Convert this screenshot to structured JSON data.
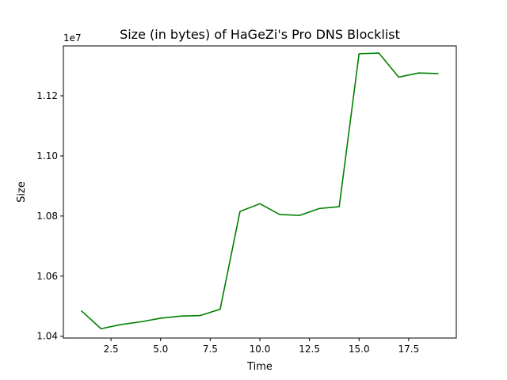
{
  "chart_data": {
    "type": "line",
    "title": "Size (in bytes) of HaGeZi's Pro DNS Blocklist",
    "xlabel": "Time",
    "ylabel": "Size",
    "y_offset_label": "1e7",
    "xlim": [
      0.1,
      19.9
    ],
    "ylim": [
      1.0394,
      1.1366
    ],
    "x_ticks": [
      2.5,
      5.0,
      7.5,
      10.0,
      12.5,
      15.0,
      17.5
    ],
    "x_tick_labels": [
      "2.5",
      "5.0",
      "7.5",
      "10.0",
      "12.5",
      "15.0",
      "17.5"
    ],
    "y_ticks": [
      1.04,
      1.06,
      1.08,
      1.1,
      1.12
    ],
    "y_tick_labels": [
      "1.04",
      "1.06",
      "1.08",
      "1.10",
      "1.12"
    ],
    "grid": false,
    "series": [
      {
        "color": "#008000",
        "x": [
          1,
          2,
          3,
          4,
          5,
          6,
          7,
          8,
          9,
          10,
          11,
          12,
          13,
          14,
          15,
          16,
          17,
          18,
          19
        ],
        "y": [
          1.0485,
          1.0425,
          1.0439,
          1.0448,
          1.046,
          1.0467,
          1.0469,
          1.049,
          1.0815,
          1.0841,
          1.0805,
          1.0802,
          1.0825,
          1.0831,
          1.134,
          1.1342,
          1.1262,
          1.1276,
          1.1274
        ]
      }
    ]
  }
}
